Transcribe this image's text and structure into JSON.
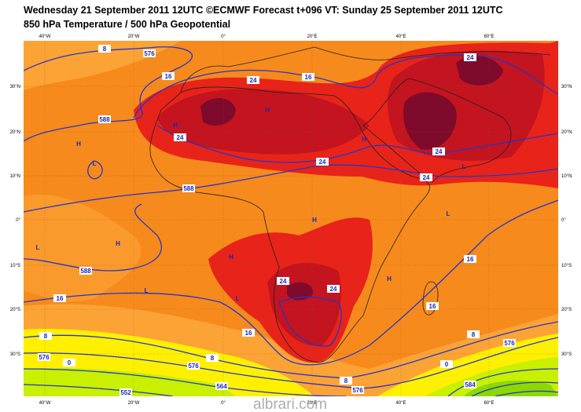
{
  "header": {
    "line1": "Wednesday 21 September 2011 12UTC ©ECMWF Forecast t+096 VT: Sunday 25 September 2011 12UTC",
    "line2": "850 hPa Temperature / 500 hPa Geopotential"
  },
  "map": {
    "longitude_labels": [
      "40°W",
      "20°W",
      "0°",
      "20°E",
      "40°E",
      "60°E"
    ],
    "latitude_labels": [
      "30°N",
      "20°N",
      "10°N",
      "0°",
      "10°S",
      "20°S",
      "30°S"
    ],
    "contour_labels": [
      "8",
      "576",
      "16",
      "24",
      "16",
      "24",
      "588",
      "24",
      "24",
      "24",
      "24",
      "588",
      "16",
      "588",
      "16",
      "24",
      "24",
      "16",
      "16",
      "8",
      "8",
      "576",
      "0",
      "8",
      "576",
      "564",
      "552",
      "8",
      "576",
      "576",
      "0",
      "584"
    ],
    "pressure_centers": [
      "H",
      "H",
      "H",
      "H",
      "L",
      "H",
      "L",
      "H",
      "H",
      "L",
      "L",
      "H",
      "L",
      "L"
    ]
  },
  "watermark": "albrari.com"
}
